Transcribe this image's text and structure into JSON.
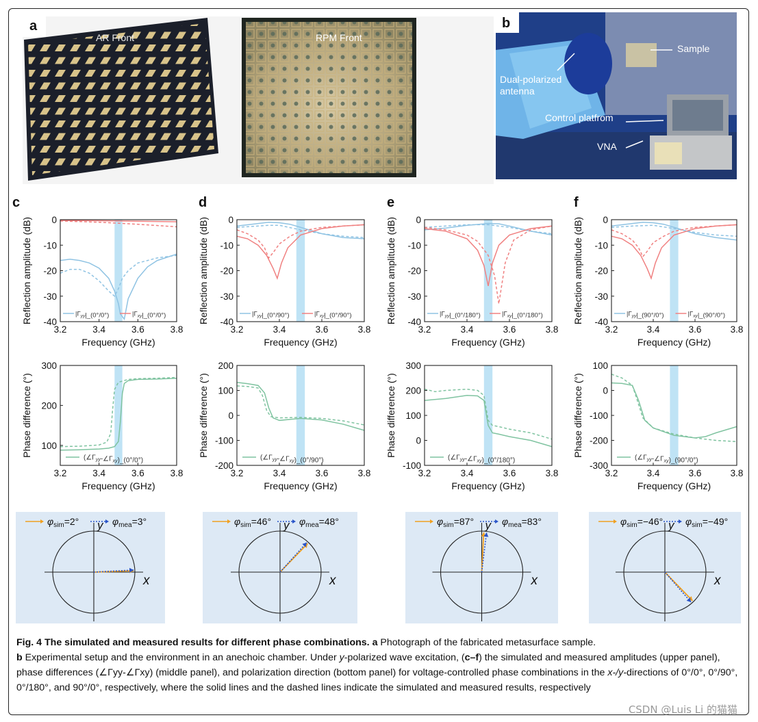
{
  "panel_letters": [
    "a",
    "b",
    "c",
    "d",
    "e",
    "f"
  ],
  "photo_a": {
    "left_label": "AR Front",
    "right_label": "RPM Front"
  },
  "photo_b": {
    "labels": [
      "Sample",
      "Dual-polarized antenna",
      "Control platfrom",
      "VNA"
    ]
  },
  "colors": {
    "sim_blue": "#8fc3e3",
    "sim_red": "#f08080",
    "phase_green": "#7fc3a0",
    "band": "#bfe3f5",
    "arrow_sim": "#f0a020",
    "arrow_mea": "#2a55c9",
    "pol_bg": "#dde9f5"
  },
  "chart_data": [
    {
      "id": "c-amp",
      "type": "line",
      "panel": "c",
      "xlabel": "Frequency (GHz)",
      "ylabel": "Reflection amplitude (dB)",
      "xlim": [
        3.2,
        3.8
      ],
      "ylim": [
        -40,
        0
      ],
      "xticks": [
        3.2,
        3.4,
        3.6,
        3.8
      ],
      "yticks": [
        0,
        -10,
        -20,
        -30,
        -40
      ],
      "band": [
        3.48,
        3.52
      ],
      "legend": [
        "|Γyy|_(0°/0°)",
        "|Γxy|_(0°/0°)"
      ],
      "series": [
        {
          "name": "|Γyy|_(0°/0°)",
          "color": "blue",
          "style": "solid",
          "x": [
            3.2,
            3.25,
            3.3,
            3.35,
            3.4,
            3.45,
            3.48,
            3.5,
            3.51,
            3.53,
            3.55,
            3.6,
            3.65,
            3.7,
            3.8
          ],
          "y": [
            -16,
            -15.5,
            -16,
            -17,
            -19,
            -23,
            -28,
            -33,
            -37,
            -39,
            -31,
            -23,
            -18.5,
            -16,
            -13.5
          ]
        },
        {
          "name": "|Γyy| measured",
          "color": "blue",
          "style": "dashed",
          "x": [
            3.2,
            3.25,
            3.3,
            3.35,
            3.4,
            3.45,
            3.48,
            3.5,
            3.52,
            3.55,
            3.6,
            3.65,
            3.7,
            3.8
          ],
          "y": [
            -21,
            -19.5,
            -19.5,
            -21,
            -24,
            -28,
            -30,
            -27,
            -23,
            -20,
            -17,
            -16,
            -15,
            -14
          ]
        },
        {
          "name": "|Γxy|_(0°/0°)",
          "color": "red",
          "style": "solid",
          "x": [
            3.2,
            3.4,
            3.6,
            3.8
          ],
          "y": [
            -0.3,
            -0.4,
            -0.6,
            -0.8
          ]
        },
        {
          "name": "|Γxy| measured",
          "color": "red",
          "style": "dashed",
          "x": [
            3.2,
            3.4,
            3.6,
            3.8
          ],
          "y": [
            -0.5,
            -1,
            -1.8,
            -2.8
          ]
        }
      ]
    },
    {
      "id": "d-amp",
      "type": "line",
      "panel": "d",
      "xlabel": "Frequency (GHz)",
      "ylabel": "Reflection amplitude (dB)",
      "xlim": [
        3.2,
        3.8
      ],
      "ylim": [
        -40,
        0
      ],
      "xticks": [
        3.2,
        3.4,
        3.6,
        3.8
      ],
      "yticks": [
        0,
        -10,
        -20,
        -30,
        -40
      ],
      "band": [
        3.48,
        3.52
      ],
      "legend": [
        "|Γyy|_(0°/90°)",
        "|Γxy|_(0°/90°)"
      ],
      "series": [
        {
          "name": "|Γyy|_(0°/90°)",
          "color": "blue",
          "style": "solid",
          "x": [
            3.2,
            3.3,
            3.35,
            3.4,
            3.45,
            3.5,
            3.6,
            3.7,
            3.8
          ],
          "y": [
            -2.5,
            -1.5,
            -1,
            -1.2,
            -1.8,
            -3,
            -5.5,
            -7,
            -7.5
          ]
        },
        {
          "name": "|Γyy| measured",
          "color": "blue",
          "style": "dashed",
          "x": [
            3.2,
            3.3,
            3.35,
            3.4,
            3.5,
            3.6,
            3.7,
            3.8
          ],
          "y": [
            -3,
            -2.5,
            -2.2,
            -2.2,
            -4,
            -5.5,
            -6.5,
            -7
          ]
        },
        {
          "name": "|Γxy|_(0°/90°)",
          "color": "red",
          "style": "solid",
          "x": [
            3.2,
            3.25,
            3.3,
            3.34,
            3.37,
            3.39,
            3.41,
            3.44,
            3.5,
            3.6,
            3.7,
            3.8
          ],
          "y": [
            -6.5,
            -7.5,
            -10,
            -14,
            -19,
            -23,
            -17,
            -11,
            -6,
            -3.5,
            -2.5,
            -2
          ]
        },
        {
          "name": "|Γxy| measured",
          "color": "red",
          "style": "dashed",
          "x": [
            3.2,
            3.25,
            3.3,
            3.33,
            3.35,
            3.37,
            3.4,
            3.45,
            3.5,
            3.6,
            3.7,
            3.8
          ],
          "y": [
            -4,
            -5.5,
            -8,
            -11,
            -15,
            -13,
            -9.5,
            -6.5,
            -4.5,
            -3,
            -2.5,
            -2
          ]
        }
      ]
    },
    {
      "id": "e-amp",
      "type": "line",
      "panel": "e",
      "xlabel": "Frequency (GHz)",
      "ylabel": "Reflection amplitude (dB)",
      "xlim": [
        3.2,
        3.8
      ],
      "ylim": [
        -40,
        0
      ],
      "xticks": [
        3.2,
        3.4,
        3.6,
        3.8
      ],
      "yticks": [
        0,
        -10,
        -20,
        -30,
        -40
      ],
      "band": [
        3.48,
        3.52
      ],
      "legend": [
        "|Γyy|_(0°/180°)",
        "|Γxy|_(0°/180°)"
      ],
      "series": [
        {
          "name": "|Γyy|_(0°/180°)",
          "color": "blue",
          "style": "solid",
          "x": [
            3.2,
            3.3,
            3.4,
            3.5,
            3.55,
            3.6,
            3.7,
            3.8
          ],
          "y": [
            -4,
            -3.3,
            -2.2,
            -1.5,
            -1.6,
            -2.5,
            -4.5,
            -6
          ]
        },
        {
          "name": "|Γyy| measured",
          "color": "blue",
          "style": "dashed",
          "x": [
            3.2,
            3.3,
            3.4,
            3.5,
            3.6,
            3.7,
            3.8
          ],
          "y": [
            -3,
            -2.5,
            -2,
            -2,
            -3,
            -4.5,
            -5.5
          ]
        },
        {
          "name": "|Γxy|_(0°/180°)",
          "color": "red",
          "style": "solid",
          "x": [
            3.2,
            3.3,
            3.4,
            3.45,
            3.48,
            3.5,
            3.52,
            3.55,
            3.6,
            3.7,
            3.8
          ],
          "y": [
            -3.5,
            -4.5,
            -7.5,
            -12,
            -18,
            -26,
            -17,
            -10,
            -6,
            -3.5,
            -2.5
          ]
        },
        {
          "name": "|Γxy| measured",
          "color": "red",
          "style": "dashed",
          "x": [
            3.2,
            3.3,
            3.4,
            3.45,
            3.5,
            3.53,
            3.55,
            3.58,
            3.62,
            3.7,
            3.8
          ],
          "y": [
            -3,
            -4,
            -6,
            -8.5,
            -14,
            -22,
            -33,
            -17,
            -8,
            -4,
            -2.5
          ]
        }
      ]
    },
    {
      "id": "f-amp",
      "type": "line",
      "panel": "f",
      "xlabel": "Frequency (GHz)",
      "ylabel": "Reflection amplitude (dB)",
      "xlim": [
        3.2,
        3.8
      ],
      "ylim": [
        -40,
        0
      ],
      "xticks": [
        3.2,
        3.4,
        3.6,
        3.8
      ],
      "yticks": [
        0,
        -10,
        -20,
        -30,
        -40
      ],
      "band": [
        3.48,
        3.52
      ],
      "legend": [
        "|Γyy|_(90°/0°)",
        "|Γxy|_(90°/0°)"
      ],
      "series": [
        {
          "name": "|Γyy|_(90°/0°)",
          "color": "blue",
          "style": "solid",
          "x": [
            3.2,
            3.3,
            3.35,
            3.4,
            3.45,
            3.5,
            3.6,
            3.7,
            3.8
          ],
          "y": [
            -2.5,
            -1.5,
            -1,
            -1.2,
            -1.8,
            -3,
            -5.5,
            -7,
            -8
          ]
        },
        {
          "name": "|Γyy| measured",
          "color": "blue",
          "style": "dashed",
          "x": [
            3.2,
            3.3,
            3.4,
            3.5,
            3.6,
            3.7,
            3.8
          ],
          "y": [
            -3,
            -2.5,
            -2.2,
            -3.5,
            -5,
            -6,
            -6.5
          ]
        },
        {
          "name": "|Γxy|_(90°/0°)",
          "color": "red",
          "style": "solid",
          "x": [
            3.2,
            3.25,
            3.3,
            3.34,
            3.37,
            3.39,
            3.41,
            3.44,
            3.5,
            3.6,
            3.7,
            3.8
          ],
          "y": [
            -6.5,
            -7.5,
            -10,
            -14,
            -19,
            -23,
            -17,
            -11,
            -6,
            -3.5,
            -2.5,
            -2
          ]
        },
        {
          "name": "|Γxy| measured",
          "color": "red",
          "style": "dashed",
          "x": [
            3.2,
            3.25,
            3.3,
            3.33,
            3.35,
            3.37,
            3.4,
            3.45,
            3.5,
            3.6,
            3.7,
            3.8
          ],
          "y": [
            -4,
            -5.5,
            -8,
            -11,
            -14.5,
            -12.5,
            -9,
            -6.5,
            -4.5,
            -3,
            -2.5,
            -2
          ]
        }
      ]
    },
    {
      "id": "c-phase",
      "type": "line",
      "panel": "c",
      "xlabel": "Frequency (GHz)",
      "ylabel": "Phase difference (°)",
      "xlim": [
        3.2,
        3.8
      ],
      "ylim": [
        50,
        300
      ],
      "xticks": [
        3.2,
        3.4,
        3.6,
        3.8
      ],
      "yticks": [
        100,
        200,
        300
      ],
      "band": [
        3.48,
        3.52
      ],
      "legend": [
        "(∠Γyy-∠Γxy)_(0°/0°)"
      ],
      "series": [
        {
          "name": "(∠Γyy-∠Γxy)_(0°/0°)",
          "color": "green",
          "style": "solid",
          "x": [
            3.2,
            3.3,
            3.4,
            3.45,
            3.48,
            3.5,
            3.51,
            3.52,
            3.53,
            3.55,
            3.6,
            3.7,
            3.8
          ],
          "y": [
            88,
            89,
            91,
            93,
            97,
            110,
            160,
            230,
            255,
            262,
            265,
            266,
            268
          ]
        },
        {
          "name": "measured",
          "color": "green",
          "style": "dashed",
          "x": [
            3.2,
            3.3,
            3.4,
            3.44,
            3.46,
            3.47,
            3.48,
            3.5,
            3.55,
            3.6,
            3.7,
            3.8
          ],
          "y": [
            97,
            98,
            101,
            108,
            130,
            190,
            240,
            258,
            265,
            267,
            268,
            270
          ]
        }
      ]
    },
    {
      "id": "d-phase",
      "type": "line",
      "panel": "d",
      "xlabel": "Frequency (GHz)",
      "ylabel": "Phase difference (°)",
      "xlim": [
        3.2,
        3.8
      ],
      "ylim": [
        -200,
        200
      ],
      "xticks": [
        3.2,
        3.4,
        3.6,
        3.8
      ],
      "yticks": [
        200,
        100,
        0,
        -100,
        -200
      ],
      "band": [
        3.48,
        3.52
      ],
      "legend": [
        "(∠Γyy-∠Γxy)_(0°/90°)"
      ],
      "series": [
        {
          "name": "(∠Γyy-∠Γxy)_(0°/90°)",
          "color": "green",
          "style": "solid",
          "x": [
            3.2,
            3.25,
            3.3,
            3.33,
            3.35,
            3.37,
            3.4,
            3.5,
            3.6,
            3.7,
            3.8
          ],
          "y": [
            132,
            127,
            120,
            90,
            30,
            -10,
            -20,
            -12,
            -18,
            -35,
            -60
          ]
        },
        {
          "name": "measured",
          "color": "green",
          "style": "dashed",
          "x": [
            3.2,
            3.25,
            3.3,
            3.32,
            3.34,
            3.36,
            3.4,
            3.5,
            3.6,
            3.7,
            3.8
          ],
          "y": [
            118,
            116,
            110,
            80,
            20,
            -5,
            -10,
            -8,
            -12,
            -22,
            -38
          ]
        }
      ]
    },
    {
      "id": "e-phase",
      "type": "line",
      "panel": "e",
      "xlabel": "Frequency (GHz)",
      "ylabel": "Phase difference (°)",
      "xlim": [
        3.2,
        3.8
      ],
      "ylim": [
        -100,
        300
      ],
      "xticks": [
        3.2,
        3.4,
        3.6,
        3.8
      ],
      "yticks": [
        300,
        200,
        100,
        0,
        -100
      ],
      "band": [
        3.48,
        3.52
      ],
      "legend": [
        "(∠Γyy-∠Γxy)_(0°/180°)"
      ],
      "series": [
        {
          "name": "(∠Γyy-∠Γxy)_(0°/180°)",
          "color": "green",
          "style": "solid",
          "x": [
            3.2,
            3.3,
            3.4,
            3.45,
            3.48,
            3.5,
            3.52,
            3.55,
            3.6,
            3.7,
            3.8
          ],
          "y": [
            160,
            168,
            180,
            178,
            160,
            60,
            30,
            25,
            15,
            0,
            -25
          ]
        },
        {
          "name": "measured",
          "color": "green",
          "style": "dashed",
          "x": [
            3.2,
            3.25,
            3.3,
            3.4,
            3.45,
            3.48,
            3.5,
            3.52,
            3.55,
            3.6,
            3.7,
            3.8
          ],
          "y": [
            205,
            195,
            200,
            205,
            200,
            180,
            80,
            60,
            55,
            45,
            30,
            5
          ]
        }
      ]
    },
    {
      "id": "f-phase",
      "type": "line",
      "panel": "f",
      "xlabel": "Frequency (GHz)",
      "ylabel": "Phase difference (°)",
      "xlim": [
        3.2,
        3.8
      ],
      "ylim": [
        -300,
        100
      ],
      "xticks": [
        3.2,
        3.4,
        3.6,
        3.8
      ],
      "yticks": [
        100,
        0,
        -100,
        -200,
        -300
      ],
      "band": [
        3.48,
        3.52
      ],
      "legend": [
        "(∠Γyy-∠Γxy)_(90°/0°)"
      ],
      "series": [
        {
          "name": "(∠Γyy-∠Γxy)_(90°/0°)",
          "color": "green",
          "style": "solid",
          "x": [
            3.2,
            3.25,
            3.3,
            3.33,
            3.36,
            3.4,
            3.5,
            3.6,
            3.65,
            3.7,
            3.8
          ],
          "y": [
            30,
            28,
            20,
            -40,
            -120,
            -150,
            -180,
            -190,
            -185,
            -170,
            -145
          ]
        },
        {
          "name": "measured",
          "color": "green",
          "style": "dashed",
          "x": [
            3.2,
            3.25,
            3.3,
            3.32,
            3.35,
            3.4,
            3.5,
            3.6,
            3.7,
            3.8
          ],
          "y": [
            65,
            50,
            20,
            -30,
            -110,
            -150,
            -175,
            -190,
            -200,
            -205
          ]
        }
      ]
    }
  ],
  "polarization": [
    {
      "panel": "c",
      "sim_label": "φsim=2°",
      "mea_label": "φmea=3°",
      "sim_sub": "sim",
      "mea_sub": "mea",
      "sim_val": "=2°",
      "mea_val": "=3°",
      "sim_angle": 2,
      "mea_angle": 3
    },
    {
      "panel": "d",
      "sim_sub": "sim",
      "mea_sub": "mea",
      "sim_val": "=46°",
      "mea_val": "=48°",
      "sim_angle": 46,
      "mea_angle": 48
    },
    {
      "panel": "e",
      "sim_sub": "sim",
      "mea_sub": "mea",
      "sim_val": "=87°",
      "mea_val": "=83°",
      "sim_angle": 87,
      "mea_angle": 83
    },
    {
      "panel": "f",
      "sim_sub": "sim",
      "mea_sub": "sim",
      "sim_val": "=−46°",
      "mea_val": "=−49°",
      "sim_angle": -46,
      "mea_angle": -49
    }
  ],
  "axis_letters": {
    "x": "x",
    "y": "y"
  },
  "caption": {
    "fig": "Fig. 4",
    "title": "The simulated and measured results for different phase combinations.",
    "a_label": "a",
    "a_text": "Photograph of the fabricated metasurface sample.",
    "b_label": "b",
    "b_text1": "Experimental setup and the environment in an anechoic chamber. Under ",
    "b_y": "y",
    "b_text2": "-polarized wave excitation, (",
    "b_cf": "c–f",
    "b_text3": ") the simulated and measured amplitudes (upper panel), phase differences (∠Γyy-∠Γxy) (middle panel), and polarization direction (bottom panel) for voltage-controlled phase combinations in the ",
    "b_xy": "x-/y-",
    "b_text4": "directions of 0°/0°, 0°/90°, 0°/180°, and 90°/0°, respectively, where the solid lines and the dashed lines indicate the simulated and measured results, respectively"
  },
  "watermark": "CSDN @Luis Li 的猫猫"
}
